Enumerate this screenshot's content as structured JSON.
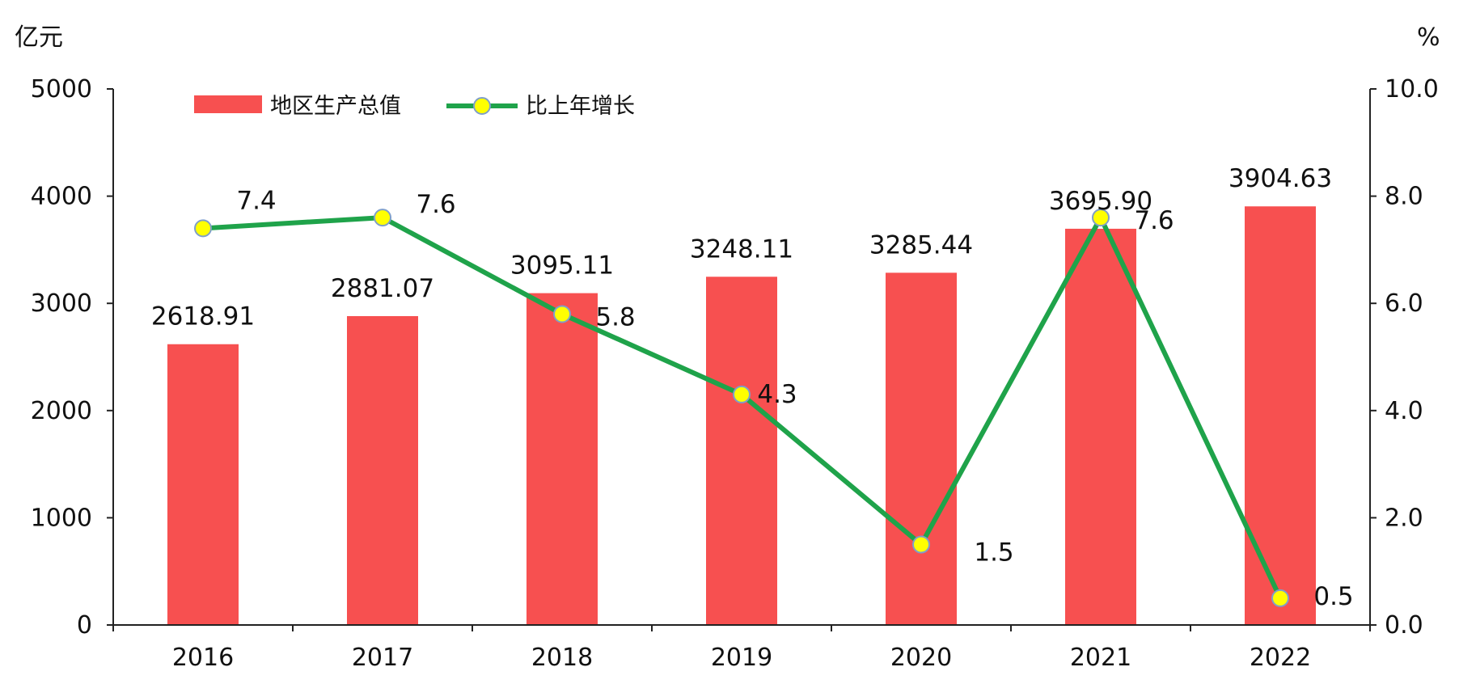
{
  "chart_data": {
    "type": "bar",
    "categories": [
      "2016",
      "2017",
      "2018",
      "2019",
      "2020",
      "2021",
      "2022"
    ],
    "series": [
      {
        "name": "地区生产总值",
        "type": "bar",
        "axis": "left",
        "values": [
          2618.91,
          2881.07,
          3095.11,
          3248.11,
          3285.44,
          3695.9,
          3904.63
        ],
        "labels": [
          "2618.91",
          "2881.07",
          "3095.11",
          "3248.11",
          "3285.44",
          "3695.90",
          "3904.63"
        ],
        "color": "#f75050"
      },
      {
        "name": "比上年增长",
        "type": "line",
        "axis": "right",
        "values": [
          7.4,
          7.6,
          5.8,
          4.3,
          1.5,
          7.6,
          0.5
        ],
        "labels": [
          "7.4",
          "7.6",
          "5.8",
          "4.3",
          "1.5",
          "7.6",
          "0.5"
        ],
        "color": "#1fa34a",
        "marker_color": "#ffff00",
        "marker_edge": "#7f9fc8"
      }
    ],
    "y_left": {
      "unit": "亿元",
      "ylim": [
        0,
        5000
      ],
      "ticks": [
        "0",
        "1000",
        "2000",
        "3000",
        "4000",
        "5000"
      ]
    },
    "y_right": {
      "unit": "%",
      "ylim": [
        0,
        10
      ],
      "ticks": [
        "0.0",
        "2.0",
        "4.0",
        "6.0",
        "8.0",
        "10.0"
      ]
    },
    "grid": false,
    "legend": "top-left"
  }
}
